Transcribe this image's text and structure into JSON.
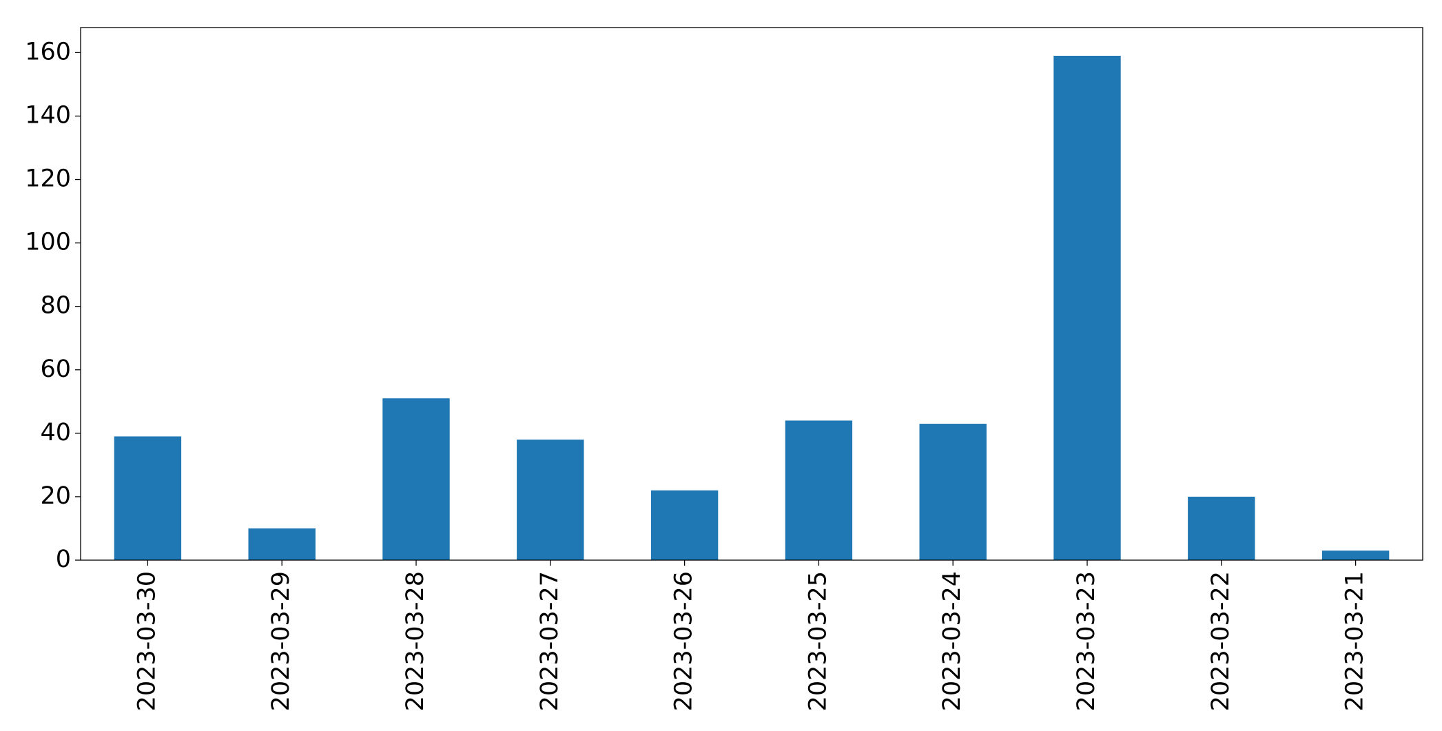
{
  "chart_data": {
    "type": "bar",
    "categories": [
      "2023-03-30",
      "2023-03-29",
      "2023-03-28",
      "2023-03-27",
      "2023-03-26",
      "2023-03-25",
      "2023-03-24",
      "2023-03-23",
      "2023-03-22",
      "2023-03-21"
    ],
    "values": [
      39,
      10,
      51,
      38,
      22,
      44,
      43,
      159,
      20,
      3
    ],
    "color": "#1f77b4",
    "ylim": [
      0,
      167.9
    ],
    "yticks": [
      0,
      20,
      40,
      60,
      80,
      100,
      120,
      140,
      160
    ],
    "grid": false
  }
}
